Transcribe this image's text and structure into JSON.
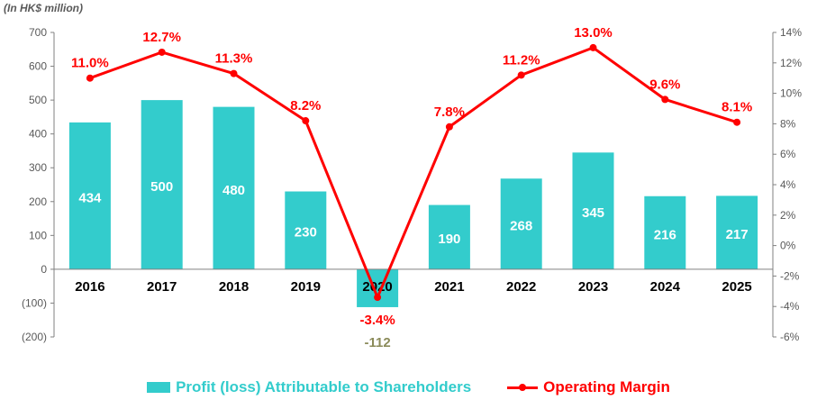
{
  "unit_label": "(In HK$ million)",
  "colors": {
    "bar": "#33CCCC",
    "line": "#FF0000",
    "neg_label": "#8B8B5A",
    "axis": "#808080",
    "text": "#000000"
  },
  "chart_data": {
    "type": "bar+line",
    "categories": [
      "2016",
      "2017",
      "2018",
      "2019",
      "2020",
      "2021",
      "2022",
      "2023",
      "2024",
      "2025"
    ],
    "series": [
      {
        "name": "Profit (loss) Attributable to Shareholders",
        "type": "bar",
        "axis": "left",
        "values": [
          434,
          500,
          480,
          230,
          -112,
          190,
          268,
          345,
          216,
          217
        ]
      },
      {
        "name": "Operating Margin",
        "type": "line",
        "axis": "right",
        "values": [
          11.0,
          12.7,
          11.3,
          8.2,
          -3.4,
          7.8,
          11.2,
          13.0,
          9.6,
          8.1
        ]
      }
    ],
    "bar_labels": [
      "434",
      "500",
      "480",
      "230",
      "-112",
      "190",
      "268",
      "345",
      "216",
      "217"
    ],
    "line_labels": [
      "11.0%",
      "12.7%",
      "11.3%",
      "8.2%",
      "-3.4%",
      "7.8%",
      "11.2%",
      "13.0%",
      "9.6%",
      "8.1%"
    ],
    "y_left": {
      "min": -200,
      "max": 700,
      "step": 100,
      "tick_labels": [
        "(200)",
        "(100)",
        "0",
        "100",
        "200",
        "300",
        "400",
        "500",
        "600",
        "700"
      ]
    },
    "y_right": {
      "min": -6,
      "max": 14,
      "step": 2,
      "tick_labels": [
        "-6%",
        "-4%",
        "-2%",
        "0%",
        "2%",
        "4%",
        "6%",
        "8%",
        "10%",
        "12%",
        "14%"
      ]
    },
    "legend": [
      "Profit (loss) Attributable to Shareholders",
      "Operating Margin"
    ],
    "legend_position": "bottom"
  }
}
